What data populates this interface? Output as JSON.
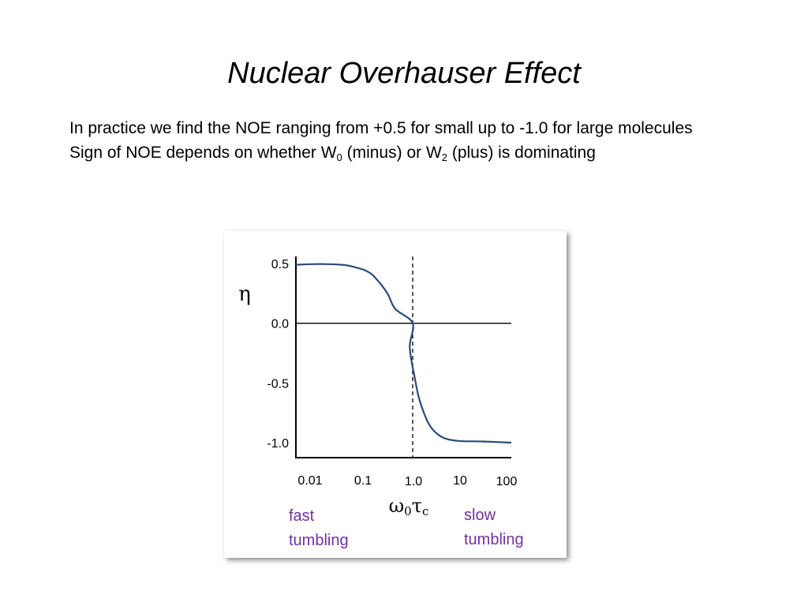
{
  "slide": {
    "title": "Nuclear Overhauser Effect",
    "line1": "In practice we find the NOE ranging from +0.5 for small up to -1.0 for large molecules",
    "line2_pre": "Sign of NOE depends on whether W",
    "line2_sub1": "0",
    "line2_mid": " (minus) or W",
    "line2_sub2": "2",
    "line2_post": " (plus) is dominating"
  },
  "chart_data": {
    "type": "line",
    "title": "",
    "xlabel_main": "ω",
    "xlabel_sub1": "0",
    "xlabel_tau": "τ",
    "xlabel_sub2": "c",
    "ylabel": "η",
    "x_scale": "log",
    "xlim": [
      0.01,
      100
    ],
    "ylim": [
      -1.0,
      0.5
    ],
    "x_ticks": [
      "0.01",
      "0.1",
      "1.0",
      "10",
      "100"
    ],
    "y_ticks": [
      {
        "value": 0.5,
        "label": "0.5"
      },
      {
        "value": 0.0,
        "label": "0.0"
      },
      {
        "value": -0.5,
        "label": "-0.5"
      },
      {
        "value": -1.0,
        "label": "-1.0"
      }
    ],
    "reference_lines": [
      {
        "orientation": "horizontal",
        "value": 0.0,
        "style": "solid"
      },
      {
        "orientation": "vertical",
        "value": 1.0,
        "style": "dashed"
      }
    ],
    "series": [
      {
        "color": "#2b4a7a",
        "points": [
          [
            0.01,
            0.49
          ],
          [
            0.02,
            0.495
          ],
          [
            0.04,
            0.495
          ],
          [
            0.07,
            0.49
          ],
          [
            0.1,
            0.48
          ],
          [
            0.2,
            0.44
          ],
          [
            0.3,
            0.38
          ],
          [
            0.5,
            0.25
          ],
          [
            0.7,
            0.12
          ],
          [
            1.0,
            0.0
          ],
          [
            1.3,
            -0.2
          ],
          [
            1.6,
            -0.45
          ],
          [
            2.0,
            -0.65
          ],
          [
            3.0,
            -0.85
          ],
          [
            5.0,
            -0.95
          ],
          [
            10,
            -0.985
          ],
          [
            30,
            -0.99
          ],
          [
            100,
            -1.0
          ]
        ]
      }
    ],
    "annotations": [
      {
        "text_line1": "fast",
        "text_line2": "tumbling",
        "color": "#7030a0"
      },
      {
        "text_line1": "slow",
        "text_line2": "tumbling",
        "color": "#7030a0"
      }
    ]
  }
}
